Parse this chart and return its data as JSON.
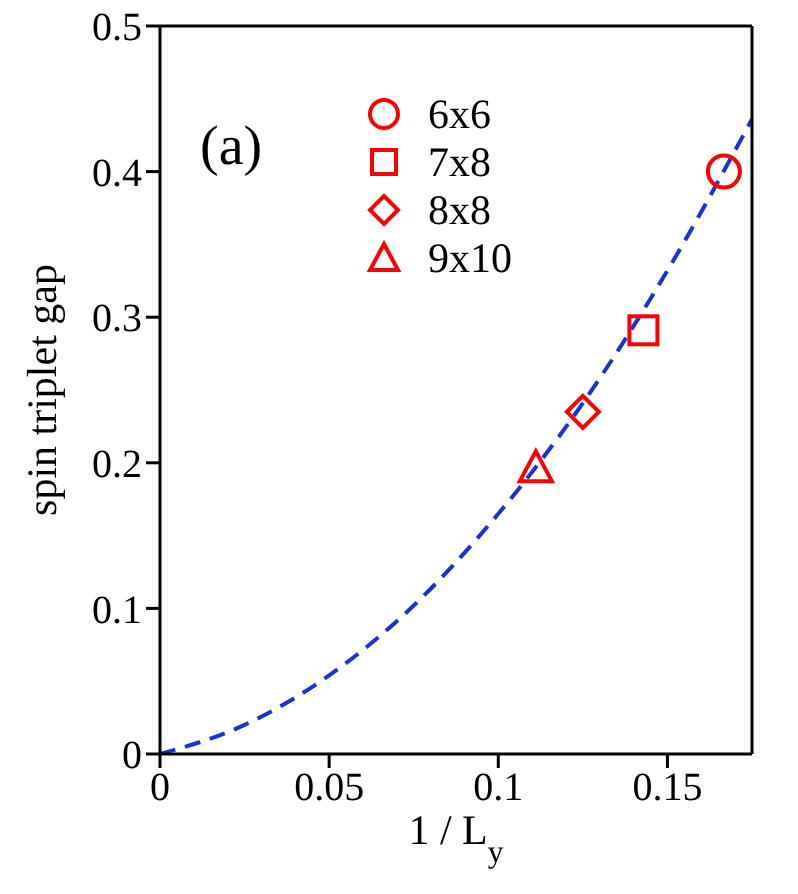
{
  "chart_data": {
    "type": "scatter",
    "xlabel": "1 / L$_{y}$",
    "ylabel": "spin triplet gap",
    "xlim": [
      0,
      0.175
    ],
    "ylim": [
      0,
      0.5
    ],
    "xticks": [
      0,
      0.05,
      0.1,
      0.15
    ],
    "yticks": [
      0,
      0.1,
      0.2,
      0.3,
      0.4,
      0.5
    ],
    "legend": "top left",
    "annotations": [
      "(a)"
    ],
    "series": [
      {
        "type": "line",
        "color": "#1a33d6",
        "line_style": "dashed",
        "marker": "none",
        "x": [
          0,
          0.025,
          0.05,
          0.075,
          0.1,
          0.125,
          0.15,
          0.175
        ],
        "values": [
          0,
          0.02,
          0.054,
          0.102,
          0.165,
          0.241,
          0.332,
          0.436
        ]
      },
      {
        "name": "6x6",
        "color": "#ff0000",
        "marker": "circle",
        "x": [
          0.1667
        ],
        "values": [
          0.4
        ]
      },
      {
        "name": "7x8",
        "color": "#ff0000",
        "marker": "square",
        "x": [
          0.1429
        ],
        "values": [
          0.291
        ]
      },
      {
        "name": "8x8",
        "color": "#ff0000",
        "marker": "diamond",
        "x": [
          0.125
        ],
        "values": [
          0.235
        ]
      },
      {
        "name": "9x10",
        "color": "#ff0000",
        "marker": "triangle",
        "x": [
          0.1111
        ],
        "values": [
          0.197
        ]
      }
    ]
  }
}
